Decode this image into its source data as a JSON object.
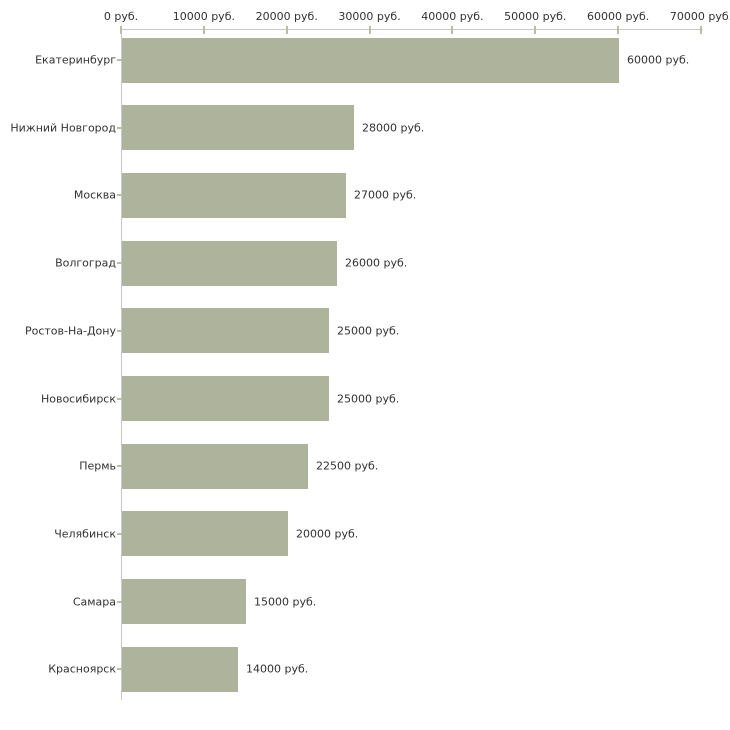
{
  "chart_data": {
    "type": "bar",
    "orientation": "horizontal",
    "title": "",
    "categories": [
      "Екатеринбург",
      "Нижний Новгород",
      "Москва",
      "Волгоград",
      "Ростов-На-Дону",
      "Новосибирск",
      "Пермь",
      "Челябинск",
      "Самара",
      "Красноярск"
    ],
    "values": [
      60000,
      28000,
      27000,
      26000,
      25000,
      25000,
      22500,
      20000,
      15000,
      14000
    ],
    "value_labels": [
      "60000 руб.",
      "28000 руб.",
      "27000 руб.",
      "26000 руб.",
      "25000 руб.",
      "25000 руб.",
      "22500 руб.",
      "20000 руб.",
      "15000 руб.",
      "14000 руб."
    ],
    "unit": "руб.",
    "xlim": [
      0,
      70000
    ],
    "x_ticks": {
      "values": [
        0,
        10000,
        20000,
        30000,
        40000,
        50000,
        60000,
        70000
      ],
      "labels": [
        "0 руб.",
        "10000 руб.",
        "20000 руб.",
        "30000 руб.",
        "40000 руб.",
        "50000 руб.",
        "60000 руб.",
        "70000 руб."
      ]
    },
    "grid": "off",
    "legend": "none",
    "colors": {
      "bar": "#aeb49b",
      "axis_line": "#c9c9c9",
      "tick": "#b9bda3",
      "text": "#323232",
      "background": "#ffffff"
    }
  }
}
